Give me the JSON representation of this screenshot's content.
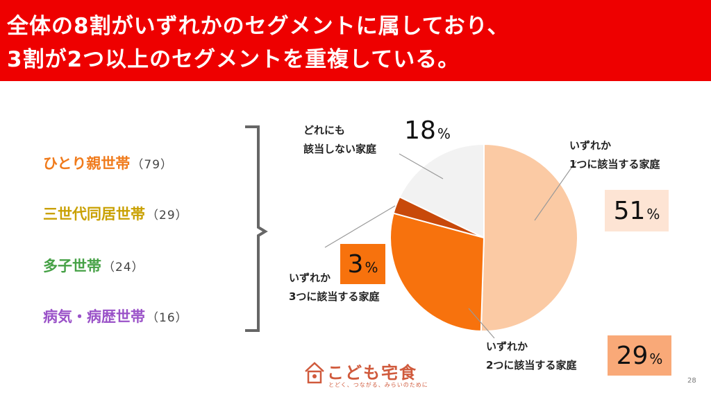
{
  "header": {
    "line1": "全体の8割がいずれかのセグメントに属しており、",
    "line2": "3割が2つ以上のセグメントを重複している。"
  },
  "segments": [
    {
      "label": "ひとり親世帯",
      "count": "（79）",
      "color": "#f07b1c"
    },
    {
      "label": "三世代同居世帯",
      "count": "（29）",
      "color": "#c9a000"
    },
    {
      "label": "多子世帯",
      "count": "（24）",
      "color": "#46a146"
    },
    {
      "label": "病気・病歴世帯",
      "count": "（16）",
      "color": "#9a52c8"
    }
  ],
  "chart_data": {
    "type": "pie",
    "slices": [
      {
        "label": "いずれか 1つに該当する家庭",
        "value": 51,
        "color": "#fbcaa4"
      },
      {
        "label": "いずれか 2つに該当する家庭",
        "value": 29,
        "color": "#f7720d"
      },
      {
        "label": "いずれか 3つに該当する家庭",
        "value": 3,
        "color": "#c8490a"
      },
      {
        "label": "どれにも 該当しない家庭",
        "value": 18,
        "color": "#f2f2f2"
      }
    ],
    "labels": {
      "s1": {
        "line1": "いずれか",
        "line2": "1つに該当する家庭",
        "pct": "51",
        "box": "#fde4d4"
      },
      "s2": {
        "line1": "いずれか",
        "line2": "2つに該当する家庭",
        "pct": "29",
        "box": "#f9a978"
      },
      "s3": {
        "line1": "いずれか",
        "line2": "3つに該当する家庭",
        "pct": "3",
        "box": "#f7720d"
      },
      "s4": {
        "line1": "どれにも",
        "line2": "該当しない家庭",
        "pct": "18"
      }
    },
    "pct_sign": "%"
  },
  "logo": {
    "name": "こども宅食",
    "tagline": "とどく、つながる、みらいのために"
  },
  "page_number": "28"
}
